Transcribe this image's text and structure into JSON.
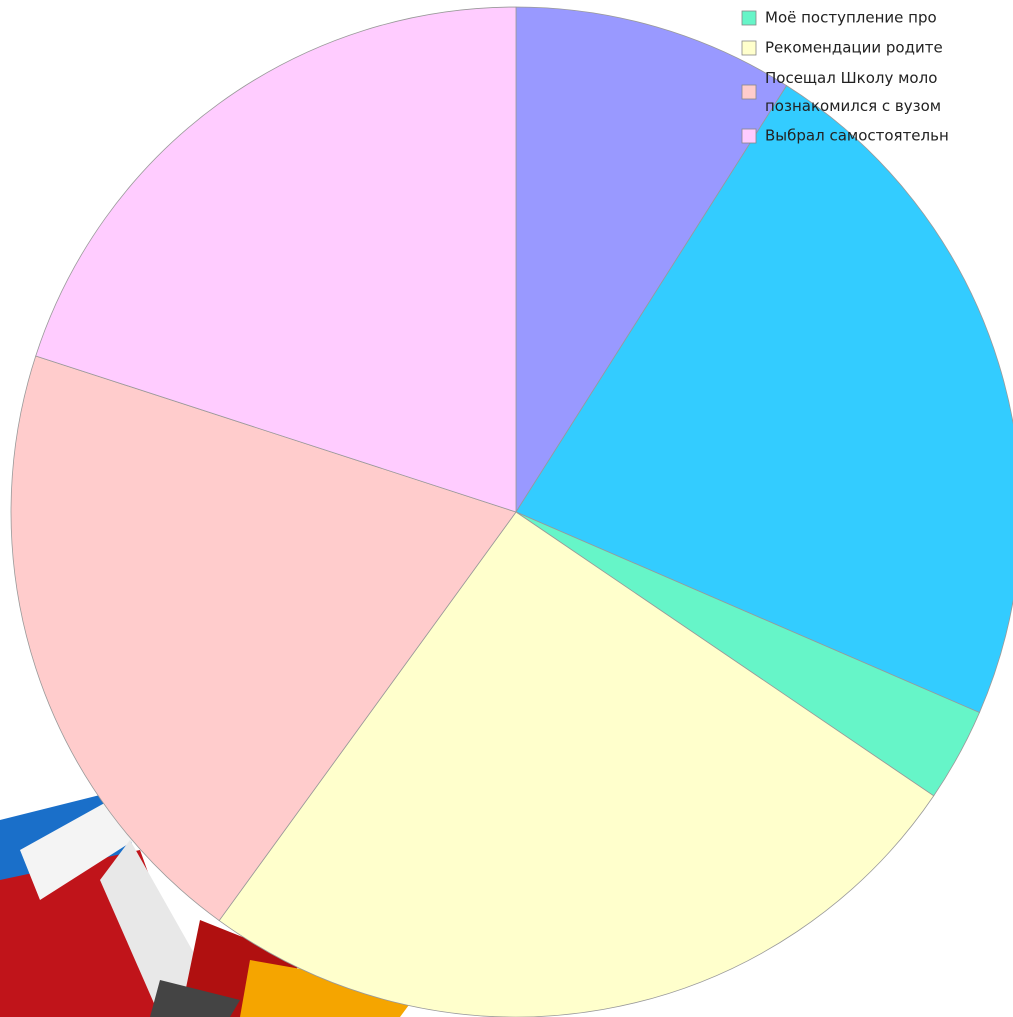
{
  "chart_data": {
    "type": "pie",
    "categories": [
      null,
      null,
      "Моё поступление про",
      "Рекомендации родите",
      "Посещал Школу моло\nпознакомился с вузом",
      "Выбрал самостоятельн"
    ],
    "values": [
      9,
      22.5,
      3,
      25.5,
      20,
      20
    ],
    "colors": [
      "#9999ff",
      "#33ccff",
      "#66f5c8",
      "#ffffcc",
      "#ffcccc",
      "#ffccff"
    ]
  }
}
